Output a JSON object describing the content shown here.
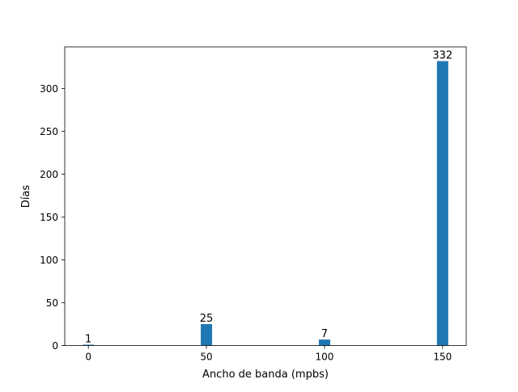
{
  "chart_data": {
    "type": "bar",
    "title": "",
    "xlabel": "Ancho de banda (mpbs)",
    "ylabel": "Días",
    "x": [
      0,
      50,
      100,
      150
    ],
    "values": [
      1,
      25,
      7,
      332
    ],
    "data_labels": [
      "1",
      "25",
      "7",
      "332"
    ],
    "xticks": [
      0,
      50,
      100,
      150
    ],
    "xtick_labels": [
      "0",
      "50",
      "100",
      "150"
    ],
    "yticks": [
      0,
      50,
      100,
      150,
      200,
      250,
      300
    ],
    "ytick_labels": [
      "0",
      "50",
      "100",
      "150",
      "200",
      "250",
      "300"
    ],
    "xlim": [
      -10,
      160
    ],
    "ylim": [
      0,
      348.6
    ],
    "bar_color": "#1f77b4",
    "grid": false,
    "legend": "none"
  }
}
